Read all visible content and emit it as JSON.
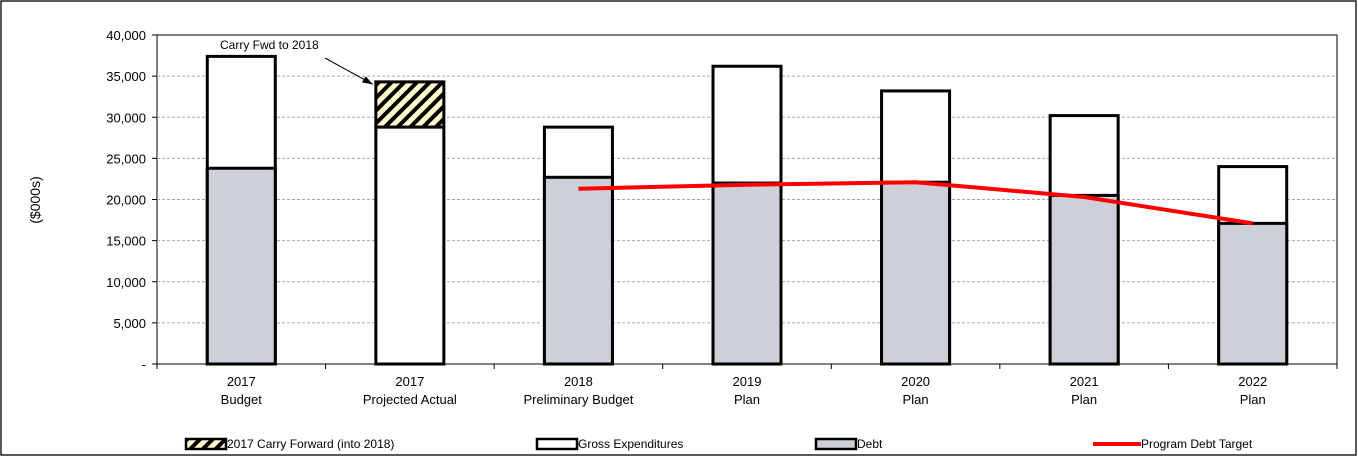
{
  "chart_data": {
    "type": "bar",
    "title": "",
    "xlabel": "",
    "ylabel": "($000s)",
    "ylim": [
      0,
      40000
    ],
    "yticks": [
      0,
      5000,
      10000,
      15000,
      20000,
      25000,
      30000,
      35000,
      40000
    ],
    "ytick_labels": [
      "-",
      "5,000",
      "10,000",
      "15,000",
      "20,000",
      "25,000",
      "30,000",
      "35,000",
      "40,000"
    ],
    "grid": true,
    "categories": [
      [
        "2017",
        "Budget"
      ],
      [
        "2017",
        "Projected Actual"
      ],
      [
        "2018",
        "Preliminary Budget"
      ],
      [
        "2019",
        "Plan"
      ],
      [
        "2020",
        "Plan"
      ],
      [
        "2021",
        "Plan"
      ],
      [
        "2022",
        "Plan"
      ]
    ],
    "series": [
      {
        "name": "2017 Carry Forward (into 2018)",
        "kind": "bar",
        "pattern": "hatch",
        "color": "#ffffcc",
        "values": [
          0,
          34300,
          0,
          0,
          0,
          0,
          0
        ]
      },
      {
        "name": "Gross Expenditures",
        "kind": "bar",
        "color": "#ffffff",
        "values": [
          37400,
          28800,
          28800,
          36200,
          33200,
          30200,
          24000
        ]
      },
      {
        "name": "Debt",
        "kind": "bar",
        "color": "#cdd0d6",
        "values": [
          23800,
          0,
          22700,
          22000,
          22100,
          20500,
          17100
        ]
      },
      {
        "name": "Program Debt Target",
        "kind": "line",
        "color": "#ff0000",
        "values": [
          null,
          null,
          21300,
          21800,
          22100,
          20300,
          17100
        ]
      }
    ],
    "annotations": [
      {
        "text": "Carry Fwd to 2018",
        "arrow_to_category": 1
      }
    ],
    "legend_position": "bottom"
  }
}
